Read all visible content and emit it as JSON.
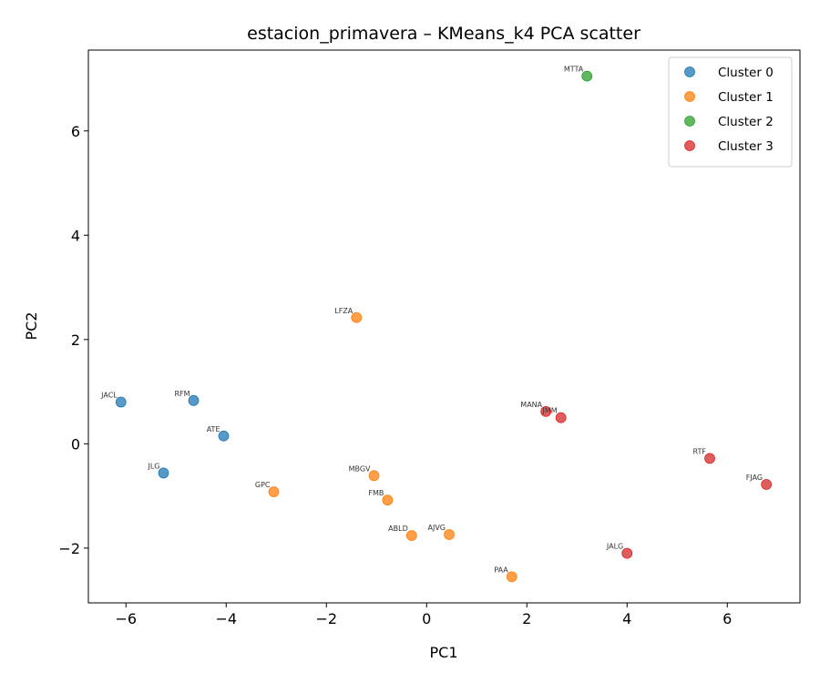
{
  "chart_data": {
    "type": "scatter",
    "title": "estacion_primavera – KMeans_k4 PCA scatter",
    "xlabel": "PC1",
    "ylabel": "PC2",
    "xlim": [
      -6.75,
      7.45
    ],
    "ylim": [
      -3.05,
      7.55
    ],
    "xticks": [
      -6,
      -4,
      -2,
      0,
      2,
      4,
      6
    ],
    "yticks": [
      -2,
      0,
      2,
      4,
      6
    ],
    "legend_position": "top-right",
    "grid": false,
    "series": [
      {
        "name": "Cluster 0",
        "color": "#1f77b4",
        "points": [
          {
            "x": -6.1,
            "y": 0.8,
            "label": "JACL"
          },
          {
            "x": -4.65,
            "y": 0.83,
            "label": "RFM"
          },
          {
            "x": -4.05,
            "y": 0.15,
            "label": "ATE"
          },
          {
            "x": -5.25,
            "y": -0.56,
            "label": "JLG"
          }
        ]
      },
      {
        "name": "Cluster 1",
        "color": "#ff7f0e",
        "points": [
          {
            "x": -1.4,
            "y": 2.42,
            "label": "LFZA"
          },
          {
            "x": -3.05,
            "y": -0.92,
            "label": "GPC"
          },
          {
            "x": -1.05,
            "y": -0.61,
            "label": "MBGV"
          },
          {
            "x": -0.78,
            "y": -1.08,
            "label": "FMB"
          },
          {
            "x": -0.3,
            "y": -1.76,
            "label": "ABLD"
          },
          {
            "x": 0.45,
            "y": -1.74,
            "label": "AJVG"
          },
          {
            "x": 1.7,
            "y": -2.55,
            "label": "PAA"
          }
        ]
      },
      {
        "name": "Cluster 2",
        "color": "#2ca02c",
        "points": [
          {
            "x": 3.2,
            "y": 7.05,
            "label": "MTTA"
          }
        ]
      },
      {
        "name": "Cluster 3",
        "color": "#d62728",
        "points": [
          {
            "x": 2.38,
            "y": 0.62,
            "label": "MANA"
          },
          {
            "x": 2.68,
            "y": 0.5,
            "label": "JMM"
          },
          {
            "x": 5.65,
            "y": -0.28,
            "label": "RTF"
          },
          {
            "x": 6.78,
            "y": -0.78,
            "label": "FJAG"
          },
          {
            "x": 4.0,
            "y": -2.1,
            "label": "JALG"
          }
        ]
      }
    ]
  }
}
